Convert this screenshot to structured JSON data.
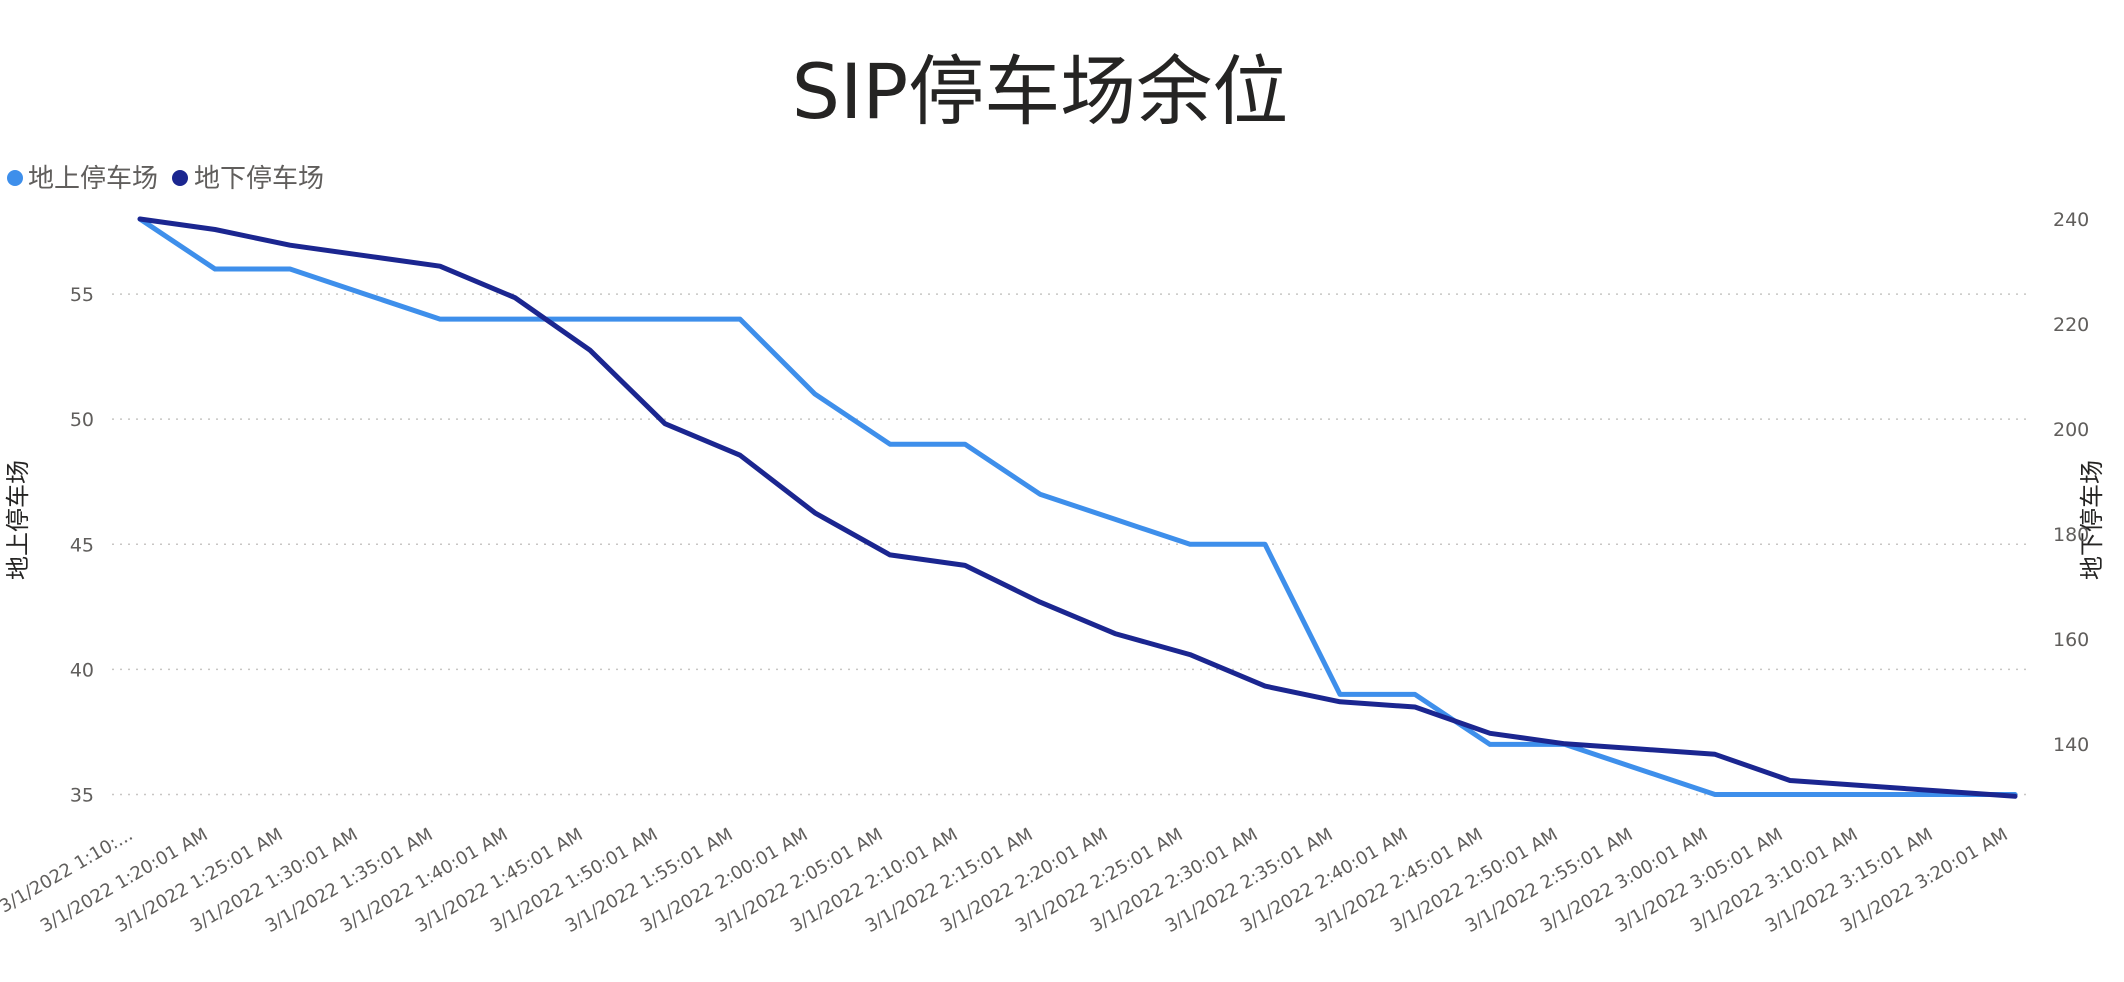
{
  "chart_data": {
    "type": "line",
    "title": "SIP停车场余位",
    "categories": [
      "3/1/2022 1:10:...",
      "3/1/2022 1:20:01 AM",
      "3/1/2022 1:25:01 AM",
      "3/1/2022 1:30:01 AM",
      "3/1/2022 1:35:01 AM",
      "3/1/2022 1:40:01 AM",
      "3/1/2022 1:45:01 AM",
      "3/1/2022 1:50:01 AM",
      "3/1/2022 1:55:01 AM",
      "3/1/2022 2:00:01 AM",
      "3/1/2022 2:05:01 AM",
      "3/1/2022 2:10:01 AM",
      "3/1/2022 2:15:01 AM",
      "3/1/2022 2:20:01 AM",
      "3/1/2022 2:25:01 AM",
      "3/1/2022 2:30:01 AM",
      "3/1/2022 2:35:01 AM",
      "3/1/2022 2:40:01 AM",
      "3/1/2022 2:45:01 AM",
      "3/1/2022 2:50:01 AM",
      "3/1/2022 2:55:01 AM",
      "3/1/2022 3:00:01 AM",
      "3/1/2022 3:05:01 AM",
      "3/1/2022 3:10:01 AM",
      "3/1/2022 3:15:01 AM",
      "3/1/2022 3:20:01 AM"
    ],
    "series": [
      {
        "name": "地上停车场",
        "color": "#3E8FEB",
        "axis": "left",
        "values": [
          58,
          56,
          56,
          55,
          54,
          54,
          54,
          54,
          54,
          51,
          49,
          49,
          47,
          46,
          45,
          45,
          39,
          39,
          37,
          37,
          36,
          35,
          35,
          35,
          35,
          35
        ]
      },
      {
        "name": "地下停车场",
        "color": "#1B2690",
        "axis": "right",
        "values": [
          240,
          238,
          235,
          233,
          231,
          225,
          215,
          201,
          195,
          184,
          176,
          174,
          167,
          161,
          157,
          151,
          148,
          147,
          142,
          140,
          139,
          138,
          133,
          132,
          131,
          130
        ]
      }
    ],
    "ylabel": "地上停车场",
    "y2label": "地下停车场",
    "ylim": [
      34.3,
      58
    ],
    "y2lim": [
      127,
      240
    ],
    "yticks": [
      35,
      40,
      45,
      50,
      55
    ],
    "y2ticks": [
      140,
      160,
      180,
      200,
      220,
      240
    ],
    "legend_position": "top-left",
    "grid": true
  }
}
